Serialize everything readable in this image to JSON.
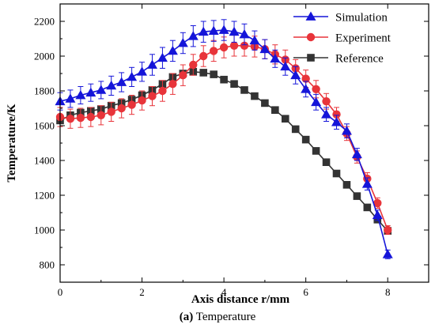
{
  "chart_data": {
    "type": "line",
    "xlabel": "Axis distance r/mm",
    "ylabel": "Temperature/K",
    "xlim": [
      0,
      9
    ],
    "ylim": [
      700,
      2300
    ],
    "xticks": [
      0,
      2,
      4,
      6,
      8
    ],
    "yticks": [
      800,
      1000,
      1200,
      1400,
      1600,
      1800,
      2000,
      2200
    ],
    "grid": false,
    "legend_position": "top-right",
    "series": [
      {
        "name": "Simulation",
        "color": "#1515d9",
        "marker": "triangle",
        "error_bars": true,
        "x": [
          0,
          0.25,
          0.5,
          0.75,
          1,
          1.25,
          1.5,
          1.75,
          2,
          2.25,
          2.5,
          2.75,
          3,
          3.25,
          3.5,
          3.75,
          4,
          4.25,
          4.5,
          4.75,
          5,
          5.25,
          5.5,
          5.75,
          6,
          6.25,
          6.5,
          6.75,
          7,
          7.25,
          7.5,
          7.75,
          8
        ],
        "y": [
          1740,
          1755,
          1775,
          1790,
          1805,
          1830,
          1850,
          1880,
          1910,
          1950,
          1990,
          2030,
          2075,
          2115,
          2140,
          2145,
          2150,
          2140,
          2125,
          2090,
          2040,
          1985,
          1940,
          1890,
          1810,
          1735,
          1665,
          1620,
          1570,
          1435,
          1265,
          1085,
          860
        ],
        "err": [
          50,
          50,
          50,
          50,
          50,
          55,
          55,
          55,
          55,
          60,
          60,
          60,
          60,
          60,
          60,
          60,
          60,
          60,
          60,
          55,
          55,
          50,
          50,
          50,
          45,
          45,
          40,
          40,
          40,
          35,
          35,
          30,
          25
        ]
      },
      {
        "name": "Experiment",
        "color": "#e8343a",
        "marker": "circle",
        "error_bars": true,
        "x": [
          0,
          0.25,
          0.5,
          0.75,
          1,
          1.25,
          1.5,
          1.75,
          2,
          2.25,
          2.5,
          2.75,
          3,
          3.25,
          3.5,
          3.75,
          4,
          4.25,
          4.5,
          4.75,
          5,
          5.25,
          5.5,
          5.75,
          6,
          6.25,
          6.5,
          6.75,
          7,
          7.25,
          7.5,
          7.75,
          8
        ],
        "y": [
          1650,
          1640,
          1645,
          1650,
          1660,
          1680,
          1700,
          1720,
          1745,
          1770,
          1800,
          1840,
          1890,
          1950,
          2000,
          2030,
          2050,
          2060,
          2060,
          2055,
          2040,
          2010,
          1980,
          1930,
          1870,
          1810,
          1740,
          1665,
          1555,
          1420,
          1295,
          1155,
          1000
        ],
        "err": [
          55,
          55,
          55,
          55,
          55,
          55,
          55,
          55,
          55,
          55,
          60,
          60,
          60,
          60,
          60,
          60,
          60,
          60,
          60,
          60,
          55,
          55,
          55,
          50,
          50,
          50,
          45,
          40,
          40,
          35,
          35,
          30,
          25
        ]
      },
      {
        "name": "Reference",
        "color": "#333333",
        "marker": "square",
        "error_bars": false,
        "x": [
          0,
          0.25,
          0.5,
          0.75,
          1,
          1.25,
          1.5,
          1.75,
          2,
          2.25,
          2.5,
          2.75,
          3,
          3.25,
          3.5,
          3.75,
          4,
          4.25,
          4.5,
          4.75,
          5,
          5.25,
          5.5,
          5.75,
          6,
          6.25,
          6.5,
          6.75,
          7,
          7.25,
          7.5,
          7.75,
          8
        ],
        "y": [
          1630,
          1660,
          1675,
          1685,
          1695,
          1715,
          1730,
          1750,
          1775,
          1805,
          1840,
          1880,
          1900,
          1910,
          1905,
          1895,
          1865,
          1840,
          1805,
          1770,
          1730,
          1690,
          1640,
          1580,
          1520,
          1455,
          1390,
          1325,
          1260,
          1195,
          1130,
          1060,
          995
        ]
      }
    ]
  },
  "caption": {
    "label": "(a)",
    "text": " Temperature"
  }
}
